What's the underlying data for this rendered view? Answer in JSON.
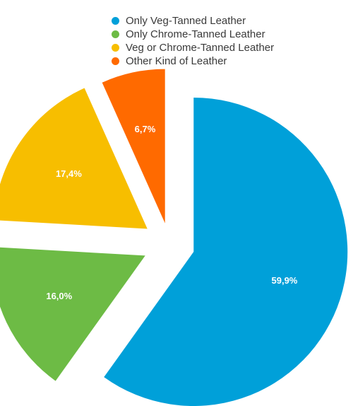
{
  "chart_data": {
    "type": "pie",
    "title": "",
    "legend_position": "top",
    "categories": [
      "Only Veg-Tanned Leather",
      "Only Chrome-Tanned Leather",
      "Veg or Chrome-Tanned Leather",
      "Other Kind of Leather"
    ],
    "values": [
      59.9,
      16.0,
      17.4,
      6.7
    ],
    "value_labels": [
      "59,9%",
      "16,0%",
      "17,4%",
      "6,7%"
    ],
    "colors": [
      "#00A0D9",
      "#6DBB45",
      "#F7BE00",
      "#FF6A00"
    ],
    "exploded": true
  }
}
